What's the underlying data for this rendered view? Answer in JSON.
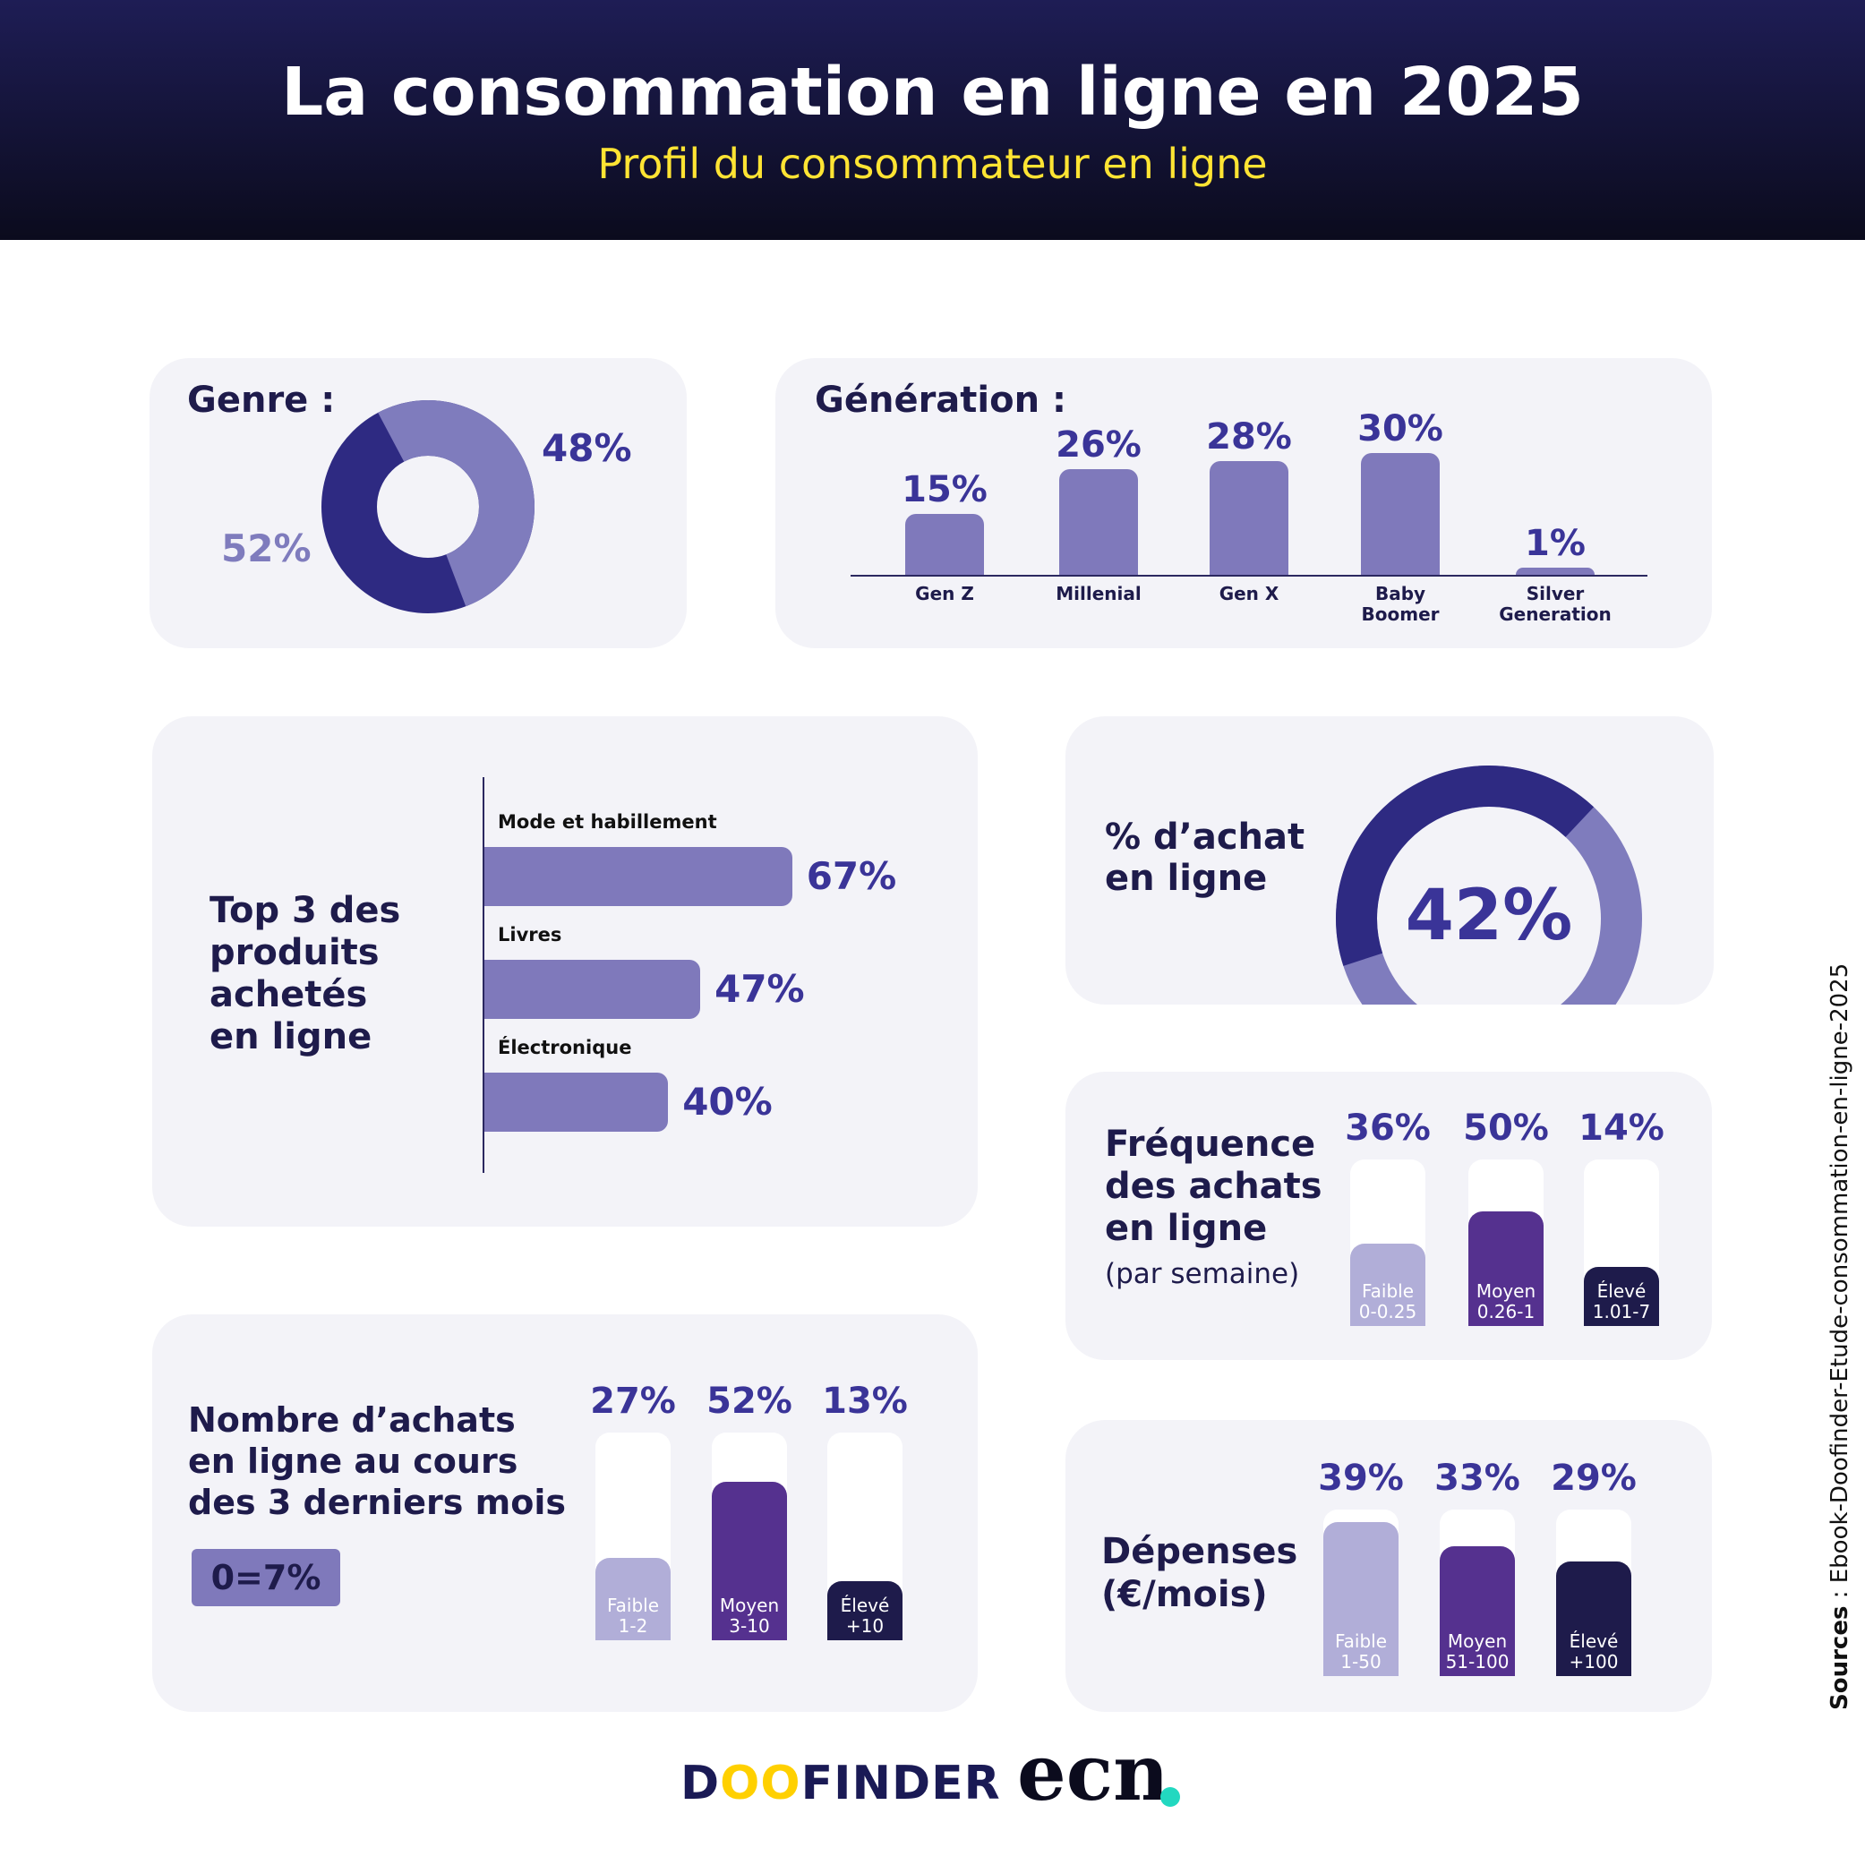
{
  "header": {
    "title": "La consommation en ligne en 2025",
    "subtitle": "Profil du consommateur en ligne"
  },
  "genre": {
    "heading": "Genre :",
    "pct_a": "48%",
    "pct_b": "52%",
    "color_a": "#2e2a82",
    "color_b": "#7f7cbd"
  },
  "generation": {
    "heading": "Génération :",
    "bars": [
      {
        "label_1": "Gen Z",
        "label_2": "",
        "pct": "15%"
      },
      {
        "label_1": "Millenial",
        "label_2": "",
        "pct": "26%"
      },
      {
        "label_1": "Gen X",
        "label_2": "",
        "pct": "28%"
      },
      {
        "label_1": "Baby",
        "label_2": "Boomer",
        "pct": "30%"
      },
      {
        "label_1": "Silver",
        "label_2": "Generation",
        "pct": "1%"
      }
    ]
  },
  "top3": {
    "heading_1": "Top 3 des",
    "heading_2": "produits",
    "heading_3": "achetés",
    "heading_4": "en ligne",
    "items": [
      {
        "label": "Mode et habillement",
        "pct": "67%"
      },
      {
        "label": "Livres",
        "pct": "47%"
      },
      {
        "label": "Électronique",
        "pct": "40%"
      }
    ]
  },
  "achat": {
    "heading_1": "% d’achat",
    "heading_2": "en ligne",
    "pct": "42%"
  },
  "frequence": {
    "heading_1": "Fréquence",
    "heading_2": "des achats",
    "heading_3": "en ligne",
    "note": "(par semaine)",
    "cols": [
      {
        "pct": "36%",
        "label": "Faible",
        "range": "0-0.25",
        "color": "#b1aed8"
      },
      {
        "pct": "50%",
        "label": "Moyen",
        "range": "0.26-1",
        "color": "#55318f"
      },
      {
        "pct": "14%",
        "label": "Élevé",
        "range": "1.01-7",
        "color": "#1e1b4b"
      }
    ]
  },
  "nombre": {
    "heading_1": "Nombre d’achats",
    "heading_2": "en ligne au cours",
    "heading_3": "des 3 derniers mois",
    "badge": "0=7%",
    "cols": [
      {
        "pct": "27%",
        "label": "Faible",
        "range": "1-2",
        "color": "#b1aed8"
      },
      {
        "pct": "52%",
        "label": "Moyen",
        "range": "3-10",
        "color": "#55318f"
      },
      {
        "pct": "13%",
        "label": "Élevé",
        "range": "+10",
        "color": "#1e1b4b"
      }
    ]
  },
  "depenses": {
    "heading_1": "Dépenses",
    "heading_2": "(€/mois)",
    "cols": [
      {
        "pct": "39%",
        "label": "Faible",
        "range": "1-50",
        "color": "#b1aed8"
      },
      {
        "pct": "33%",
        "label": "Moyen",
        "range": "51-100",
        "color": "#55318f"
      },
      {
        "pct": "29%",
        "label": "Élevé",
        "range": "+100",
        "color": "#1e1b4b"
      }
    ]
  },
  "source": {
    "label": "Sources",
    "text": " : Ebook-Doofinder-Etude-consommation-en-ligne-2025"
  },
  "logos": {
    "doofinder_1": "D",
    "doofinder_o": "OO",
    "doofinder_2": "FINDER",
    "ecn": "ecn"
  },
  "chart_data": [
    {
      "type": "pie",
      "title": "Genre :",
      "categories": [
        "",
        ""
      ],
      "values": [
        48,
        52
      ]
    },
    {
      "type": "bar",
      "title": "Génération :",
      "categories": [
        "Gen Z",
        "Millenial",
        "Gen X",
        "Baby Boomer",
        "Silver Generation"
      ],
      "values": [
        15,
        26,
        28,
        30,
        1
      ]
    },
    {
      "type": "bar",
      "title": "Top 3 des produits achetés en ligne",
      "categories": [
        "Mode et habillement",
        "Livres",
        "Électronique"
      ],
      "values": [
        67,
        47,
        40
      ]
    },
    {
      "type": "pie",
      "title": "% d’achat en ligne",
      "categories": [
        ""
      ],
      "values": [
        42
      ]
    },
    {
      "type": "bar",
      "title": "Fréquence des achats en ligne (par semaine)",
      "categories": [
        "Faible 0-0.25",
        "Moyen 0.26-1",
        "Élevé 1.01-7"
      ],
      "values": [
        36,
        50,
        14
      ]
    },
    {
      "type": "bar",
      "title": "Nombre d’achats en ligne au cours des 3 derniers mois",
      "categories": [
        "Faible 1-2",
        "Moyen 3-10",
        "Élevé +10"
      ],
      "values": [
        27,
        52,
        13
      ]
    },
    {
      "type": "bar",
      "title": "Dépenses (€/mois)",
      "categories": [
        "Faible 1-50",
        "Moyen 51-100",
        "Élevé +100"
      ],
      "values": [
        39,
        33,
        29
      ]
    }
  ]
}
